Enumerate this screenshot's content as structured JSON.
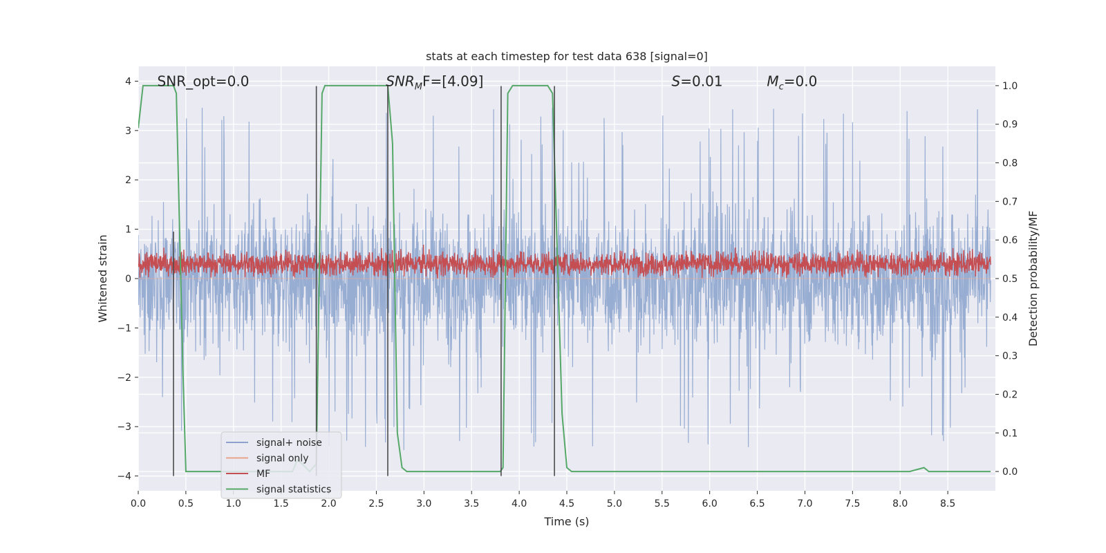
{
  "chart_data": {
    "type": "line",
    "title": "stats at each timestep for test data 638 [signal=0]",
    "xlabel": "Time (s)",
    "ylabel_left": "Whitened strain",
    "ylabel_right": "Detection probability/MF",
    "xlim": [
      0.0,
      9.0
    ],
    "ylim_left": [
      -4.3,
      4.3
    ],
    "ylim_right": [
      -0.05,
      1.05
    ],
    "xticks": [
      0.0,
      0.5,
      1.0,
      1.5,
      2.0,
      2.5,
      3.0,
      3.5,
      4.0,
      4.5,
      5.0,
      5.5,
      6.0,
      6.5,
      7.0,
      7.5,
      8.0,
      8.5
    ],
    "xtick_labels": [
      "0.0",
      "0.5",
      "1.0",
      "1.5",
      "2.0",
      "2.5",
      "3.0",
      "3.5",
      "4.0",
      "4.5",
      "5.0",
      "5.5",
      "6.0",
      "6.5",
      "7.0",
      "7.5",
      "8.0",
      "8.5"
    ],
    "yticks_left": [
      -4,
      -3,
      -2,
      -1,
      0,
      1,
      2,
      3,
      4
    ],
    "ytick_labels_left": [
      "−4",
      "−3",
      "−2",
      "−1",
      "0",
      "1",
      "2",
      "3",
      "4"
    ],
    "yticks_right": [
      0.0,
      0.1,
      0.2,
      0.3,
      0.4,
      0.5,
      0.6,
      0.7,
      0.8,
      0.9,
      1.0
    ],
    "ytick_labels_right": [
      "0.0",
      "0.1",
      "0.2",
      "0.3",
      "0.4",
      "0.5",
      "0.6",
      "0.7",
      "0.8",
      "0.9",
      "1.0"
    ],
    "grid": true,
    "legend_placement": "lower-left",
    "annotations": [
      {
        "text": "SNR_opt=0.0",
        "x": 0.2,
        "y": 4.0
      },
      {
        "text": "SNR",
        "sub": "M",
        "rest": "F=[4.09]",
        "x": 2.6,
        "y": 4.0
      },
      {
        "text": "S",
        "rest": "=0.01",
        "x": 5.6,
        "y": 4.0
      },
      {
        "text": "M",
        "sub": "c",
        "rest": "=0.0",
        "x": 6.6,
        "y": 4.0
      }
    ],
    "series": [
      {
        "name": "signal+ noise",
        "axis": "left",
        "color": "#8aa2cc",
        "style": "noise",
        "amplitude_range": [
          -4.0,
          3.6
        ]
      },
      {
        "name": "signal only",
        "axis": "left",
        "color": "#e8a48a",
        "style": "flat",
        "values": [
          0
        ]
      },
      {
        "name": "MF",
        "axis": "left",
        "color": "#c44e52",
        "style": "noise",
        "amplitude_range": [
          0.0,
          1.0
        ]
      },
      {
        "name": "signal statistics",
        "axis": "right",
        "color": "#55a868",
        "x": [
          0.0,
          0.05,
          0.37,
          0.4,
          0.47,
          0.5,
          1.62,
          1.67,
          1.72,
          1.8,
          1.87,
          1.93,
          1.96,
          2.0,
          2.62,
          2.67,
          2.72,
          2.77,
          2.82,
          3.8,
          3.83,
          3.88,
          3.93,
          4.3,
          4.35,
          4.45,
          4.5,
          4.55,
          8.1,
          8.25,
          8.3,
          8.95
        ],
        "y": [
          0.89,
          1.0,
          1.0,
          0.98,
          0.25,
          0.0,
          0.0,
          0.03,
          0.02,
          0.0,
          0.02,
          0.98,
          1.0,
          1.0,
          1.0,
          0.85,
          0.1,
          0.01,
          0.0,
          0.0,
          0.01,
          0.98,
          1.0,
          1.0,
          0.98,
          0.15,
          0.01,
          0.0,
          0.0,
          0.01,
          0.0,
          0.0
        ]
      }
    ],
    "vertical_lines": {
      "color": "#4a4a4a",
      "lines": [
        {
          "x": 0.37,
          "y0": -4.0,
          "y1": 0.95
        },
        {
          "x": 1.87,
          "y0": -4.0,
          "y1": 3.9
        },
        {
          "x": 2.62,
          "y0": -4.0,
          "y1": 3.9
        },
        {
          "x": 3.81,
          "y0": -4.0,
          "y1": 3.9
        },
        {
          "x": 4.37,
          "y0": -4.0,
          "y1": 3.9
        }
      ]
    }
  }
}
